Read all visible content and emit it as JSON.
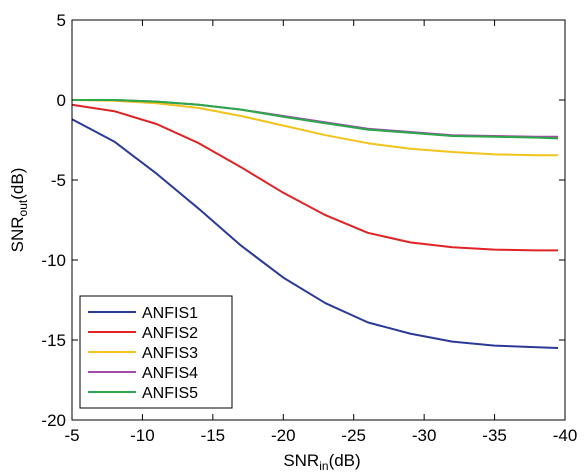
{
  "chart_data": {
    "type": "line",
    "title": "",
    "xlabel": {
      "main": "SNR",
      "sub": "in",
      "unit": "(dB)"
    },
    "ylabel": {
      "main": "SNR",
      "sub": "out",
      "unit": "(dB)"
    },
    "xlim": [
      -5,
      -40
    ],
    "ylim": [
      -20,
      5
    ],
    "x_axis_reversed": true,
    "xticks": [
      -5,
      -10,
      -15,
      -20,
      -25,
      -30,
      -35,
      -40
    ],
    "yticks": [
      -20,
      -15,
      -10,
      -5,
      0,
      5
    ],
    "grid": false,
    "legend_position": "bottom-left",
    "x": [
      -5,
      -8,
      -11,
      -14,
      -17,
      -20,
      -23,
      -26,
      -29,
      -32,
      -35,
      -38,
      -39.5
    ],
    "series": [
      {
        "name": "ANFIS1",
        "color": "#2b3a98",
        "values": [
          -1.2,
          -2.6,
          -4.6,
          -6.8,
          -9.1,
          -11.1,
          -12.7,
          -13.9,
          -14.6,
          -15.1,
          -15.35,
          -15.45,
          -15.5
        ]
      },
      {
        "name": "ANFIS2",
        "color": "#e02424",
        "values": [
          -0.3,
          -0.7,
          -1.5,
          -2.7,
          -4.2,
          -5.8,
          -7.2,
          -8.3,
          -8.9,
          -9.2,
          -9.35,
          -9.4,
          -9.4
        ]
      },
      {
        "name": "ANFIS3",
        "color": "#f2c31a",
        "values": [
          0.0,
          -0.05,
          -0.2,
          -0.5,
          -1.0,
          -1.6,
          -2.2,
          -2.7,
          -3.05,
          -3.25,
          -3.4,
          -3.45,
          -3.45
        ]
      },
      {
        "name": "ANFIS4",
        "color": "#a24aa8",
        "values": [
          0.0,
          0.0,
          -0.1,
          -0.3,
          -0.6,
          -1.0,
          -1.4,
          -1.8,
          -2.0,
          -2.2,
          -2.25,
          -2.3,
          -2.3
        ]
      },
      {
        "name": "ANFIS5",
        "color": "#2aa84a",
        "values": [
          0.0,
          0.0,
          -0.1,
          -0.3,
          -0.6,
          -1.05,
          -1.45,
          -1.85,
          -2.05,
          -2.25,
          -2.3,
          -2.35,
          -2.4
        ]
      }
    ]
  }
}
